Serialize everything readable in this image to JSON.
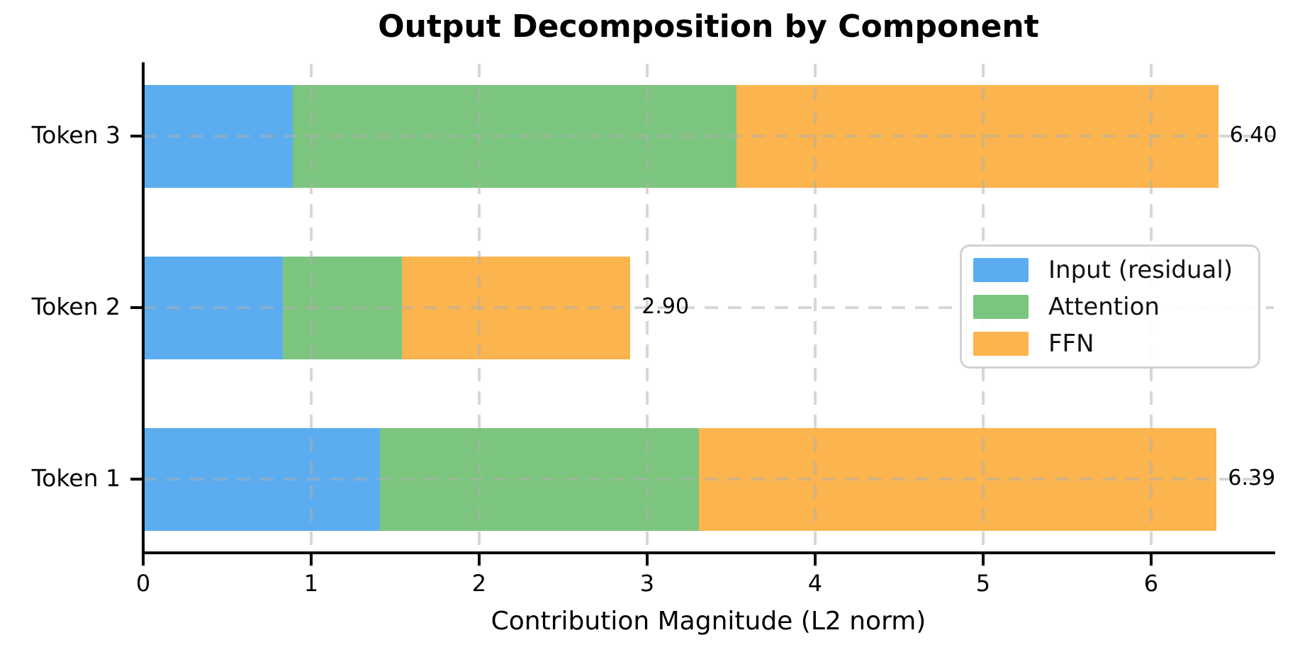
{
  "chart_data": {
    "type": "bar",
    "orientation": "horizontal",
    "stacked": true,
    "title": "Output Decomposition by Component",
    "xlabel": "Contribution Magnitude (L2 norm)",
    "categories": [
      "Token 1",
      "Token 2",
      "Token 3"
    ],
    "series": [
      {
        "name": "Input (residual)",
        "color": "#5BADF0",
        "values": [
          1.41,
          0.83,
          0.89
        ]
      },
      {
        "name": "Attention",
        "color": "#7CC57E",
        "values": [
          1.9,
          0.71,
          2.64
        ]
      },
      {
        "name": "FFN",
        "color": "#FBB44E",
        "values": [
          3.08,
          1.36,
          2.87
        ]
      }
    ],
    "total_labels": [
      "6.39",
      "2.90",
      "6.40"
    ],
    "xticks": [
      "0",
      "1",
      "2",
      "3",
      "4",
      "5",
      "6"
    ],
    "xlim": [
      0,
      6.73
    ],
    "grid": "dashed",
    "axis_color": "#000000",
    "grid_color": "#c3c3c3",
    "legend_position": "center-right"
  }
}
